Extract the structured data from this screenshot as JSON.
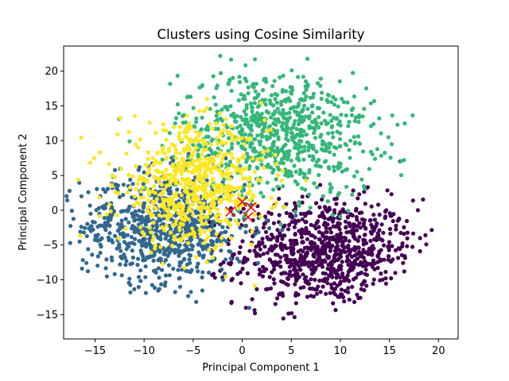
{
  "chart_data": {
    "type": "scatter",
    "title": "Clusters using Cosine Similarity",
    "xlabel": "Principal Component 1",
    "ylabel": "Principal Component 2",
    "xlim": [
      -18.2,
      22.0
    ],
    "ylim": [
      -18.5,
      23.6
    ],
    "xticks": [
      -15,
      -10,
      -5,
      0,
      5,
      10,
      15,
      20
    ],
    "yticks": [
      -15,
      -10,
      -5,
      0,
      5,
      10,
      15,
      20
    ],
    "grid": false,
    "legend": "none",
    "clusters": [
      {
        "color": "#440154",
        "center": [
          8.5,
          -6.0
        ],
        "spread": [
          4.6,
          3.8
        ],
        "count": 900
      },
      {
        "color": "#31688e",
        "center": [
          -8.0,
          -2.5
        ],
        "spread": [
          4.2,
          4.0
        ],
        "count": 750
      },
      {
        "color": "#35b779",
        "center": [
          3.5,
          11.0
        ],
        "spread": [
          5.0,
          4.5
        ],
        "count": 800
      },
      {
        "color": "#fde725",
        "center": [
          -5.0,
          3.5
        ],
        "spread": [
          3.8,
          4.2
        ],
        "count": 650
      }
    ],
    "centroids": {
      "marker": "x",
      "color": "#ff0000",
      "points": [
        {
          "x": -1.2,
          "y": -0.2
        },
        {
          "x": 0.0,
          "y": 1.2
        },
        {
          "x": 0.9,
          "y": 0.4
        },
        {
          "x": 0.6,
          "y": -1.0
        }
      ]
    }
  }
}
